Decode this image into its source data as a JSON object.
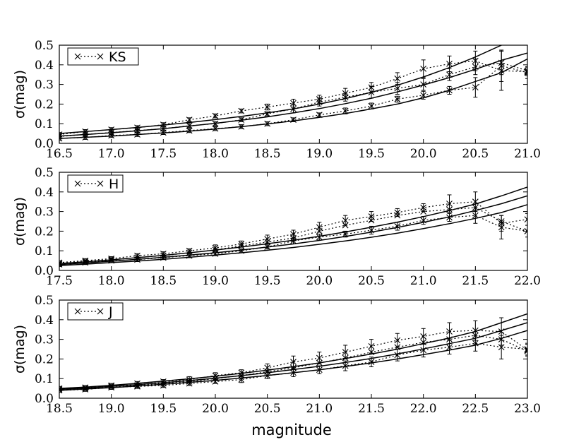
{
  "figure": {
    "xlabel": "magnitude"
  },
  "chart_data": [
    {
      "type": "line",
      "legend": "KS",
      "legend_placement": "top-left",
      "ylabel": "σ(mag)",
      "xlim": [
        16.5,
        21.0
      ],
      "ylim": [
        0.0,
        0.5
      ],
      "xticks": [
        "16.5",
        "17.0",
        "17.5",
        "18.0",
        "18.5",
        "19.0",
        "19.5",
        "20.0",
        "20.5",
        "21.0"
      ],
      "yticks": [
        "0.0",
        "0.1",
        "0.2",
        "0.3",
        "0.4",
        "0.5"
      ],
      "x": [
        16.5,
        16.75,
        17.0,
        17.25,
        17.5,
        17.75,
        18.0,
        18.25,
        18.5,
        18.75,
        19.0,
        19.25,
        19.5,
        19.75,
        20.0,
        20.25,
        20.5,
        20.75,
        21.0
      ],
      "series": [
        {
          "values": [
            0.045,
            0.06,
            0.07,
            0.08,
            0.095,
            0.12,
            0.14,
            0.165,
            0.185,
            0.205,
            0.225,
            0.255,
            0.285,
            0.33,
            0.38,
            0.405,
            0.42,
            0.37,
            0.365
          ],
          "err": [
            0.01,
            0.01,
            0.01,
            0.01,
            0.01,
            0.01,
            0.01,
            0.01,
            0.015,
            0.02,
            0.02,
            0.025,
            0.025,
            0.03,
            0.045,
            0.04,
            0.05,
            0.1,
            0.02
          ]
        },
        {
          "values": [
            0.035,
            0.045,
            0.055,
            0.065,
            0.075,
            0.09,
            0.1,
            0.12,
            0.15,
            0.175,
            0.21,
            0.235,
            0.26,
            0.28,
            0.3,
            0.35,
            0.39,
            0.41,
            0.37
          ],
          "err": [
            0.01,
            0.01,
            0.01,
            0.01,
            0.01,
            0.01,
            0.01,
            0.01,
            0.01,
            0.02,
            0.02,
            0.02,
            0.03,
            0.03,
            0.03,
            0.03,
            0.04,
            0.06,
            0.02
          ]
        },
        {
          "values": [
            0.025,
            0.03,
            0.04,
            0.045,
            0.055,
            0.065,
            0.075,
            0.085,
            0.1,
            0.12,
            0.145,
            0.165,
            0.19,
            0.225,
            0.245,
            0.27,
            0.285,
            0.395,
            0.36
          ],
          "err": [
            0.01,
            0.01,
            0.01,
            0.01,
            0.01,
            0.01,
            0.01,
            0.01,
            0.01,
            0.01,
            0.01,
            0.015,
            0.015,
            0.015,
            0.02,
            0.02,
            0.05,
            0.08,
            0.03
          ]
        }
      ],
      "fits": [
        {
          "values": [
            0.05,
            0.06,
            0.07,
            0.081,
            0.093,
            0.106,
            0.121,
            0.137,
            0.155,
            0.175,
            0.2,
            0.228,
            0.26,
            0.296,
            0.338,
            0.386,
            0.44,
            0.5,
            0.56
          ]
        },
        {
          "values": [
            0.037,
            0.045,
            0.054,
            0.064,
            0.075,
            0.088,
            0.102,
            0.118,
            0.135,
            0.155,
            0.177,
            0.202,
            0.23,
            0.262,
            0.297,
            0.335,
            0.377,
            0.423,
            0.46
          ]
        },
        {
          "values": [
            0.025,
            0.031,
            0.037,
            0.045,
            0.053,
            0.062,
            0.073,
            0.085,
            0.099,
            0.114,
            0.132,
            0.152,
            0.175,
            0.2,
            0.232,
            0.27,
            0.315,
            0.36,
            0.43
          ]
        }
      ]
    },
    {
      "type": "line",
      "legend": "H",
      "legend_placement": "top-left",
      "ylabel": "σ(mag)",
      "xlim": [
        17.5,
        22.0
      ],
      "ylim": [
        0.0,
        0.5
      ],
      "xticks": [
        "17.5",
        "18.0",
        "18.5",
        "19.0",
        "19.5",
        "20.0",
        "20.5",
        "21.0",
        "21.5",
        "22.0"
      ],
      "yticks": [
        "0.0",
        "0.1",
        "0.2",
        "0.3",
        "0.4",
        "0.5"
      ],
      "x": [
        17.5,
        17.75,
        18.0,
        18.25,
        18.5,
        18.75,
        19.0,
        19.25,
        19.5,
        19.75,
        20.0,
        20.25,
        20.5,
        20.75,
        21.0,
        21.25,
        21.5,
        21.75,
        22.0
      ],
      "series": [
        {
          "values": [
            0.04,
            0.05,
            0.06,
            0.075,
            0.085,
            0.1,
            0.115,
            0.135,
            0.16,
            0.185,
            0.22,
            0.255,
            0.275,
            0.295,
            0.32,
            0.34,
            0.35,
            0.24,
            0.26
          ],
          "err": [
            0.01,
            0.01,
            0.01,
            0.01,
            0.01,
            0.01,
            0.015,
            0.015,
            0.02,
            0.02,
            0.025,
            0.025,
            0.025,
            0.02,
            0.02,
            0.045,
            0.05,
            0.04,
            0.03
          ]
        },
        {
          "values": [
            0.035,
            0.045,
            0.055,
            0.065,
            0.075,
            0.09,
            0.105,
            0.125,
            0.145,
            0.165,
            0.2,
            0.23,
            0.255,
            0.28,
            0.3,
            0.31,
            0.32,
            0.25,
            0.2
          ]
        },
        {
          "values": [
            0.03,
            0.04,
            0.05,
            0.055,
            0.065,
            0.075,
            0.085,
            0.1,
            0.12,
            0.15,
            0.17,
            0.185,
            0.205,
            0.225,
            0.255,
            0.27,
            0.28,
            0.22,
            0.2
          ],
          "err": [
            0.01,
            0.01,
            0.01,
            0.01,
            0.01,
            0.01,
            0.01,
            0.01,
            0.01,
            0.015,
            0.015,
            0.015,
            0.02,
            0.02,
            0.02,
            0.02,
            0.04,
            0.06,
            0.03
          ]
        }
      ],
      "fits": [
        {
          "values": [
            0.035,
            0.044,
            0.054,
            0.065,
            0.077,
            0.09,
            0.104,
            0.119,
            0.136,
            0.154,
            0.174,
            0.196,
            0.22,
            0.246,
            0.274,
            0.305,
            0.338,
            0.38,
            0.425
          ]
        },
        {
          "values": [
            0.03,
            0.038,
            0.047,
            0.057,
            0.067,
            0.078,
            0.09,
            0.104,
            0.119,
            0.135,
            0.153,
            0.173,
            0.195,
            0.219,
            0.245,
            0.273,
            0.305,
            0.34,
            0.38
          ]
        },
        {
          "values": [
            0.025,
            0.032,
            0.04,
            0.048,
            0.057,
            0.067,
            0.078,
            0.09,
            0.103,
            0.117,
            0.133,
            0.15,
            0.169,
            0.19,
            0.213,
            0.238,
            0.265,
            0.295,
            0.335
          ]
        }
      ]
    },
    {
      "type": "line",
      "legend": "J",
      "legend_placement": "top-left",
      "ylabel": "σ(mag)",
      "xlim": [
        18.5,
        23.0
      ],
      "ylim": [
        0.0,
        0.5
      ],
      "xticks": [
        "18.5",
        "19.0",
        "19.5",
        "20.0",
        "20.5",
        "21.0",
        "21.5",
        "22.0",
        "22.5",
        "23.0"
      ],
      "yticks": [
        "0.0",
        "0.1",
        "0.2",
        "0.3",
        "0.4",
        "0.5"
      ],
      "x": [
        18.5,
        18.75,
        19.0,
        19.25,
        19.5,
        19.75,
        20.0,
        20.25,
        20.5,
        20.75,
        21.0,
        21.25,
        21.5,
        21.75,
        22.0,
        22.25,
        22.5,
        22.75,
        23.0
      ],
      "series": [
        {
          "values": [
            0.05,
            0.055,
            0.065,
            0.075,
            0.085,
            0.095,
            0.115,
            0.13,
            0.155,
            0.185,
            0.205,
            0.235,
            0.265,
            0.295,
            0.315,
            0.34,
            0.345,
            0.34,
            0.245
          ],
          "err": [
            0.01,
            0.01,
            0.01,
            0.01,
            0.01,
            0.015,
            0.015,
            0.015,
            0.02,
            0.03,
            0.03,
            0.035,
            0.035,
            0.035,
            0.04,
            0.045,
            0.05,
            0.07,
            0.03
          ]
        },
        {
          "values": [
            0.045,
            0.05,
            0.06,
            0.065,
            0.075,
            0.085,
            0.1,
            0.115,
            0.135,
            0.155,
            0.18,
            0.205,
            0.235,
            0.26,
            0.285,
            0.3,
            0.32,
            0.3,
            0.24
          ]
        },
        {
          "values": [
            0.04,
            0.045,
            0.055,
            0.06,
            0.065,
            0.075,
            0.085,
            0.095,
            0.115,
            0.13,
            0.145,
            0.165,
            0.185,
            0.22,
            0.245,
            0.26,
            0.28,
            0.26,
            0.25
          ],
          "err": [
            0.01,
            0.01,
            0.01,
            0.01,
            0.01,
            0.01,
            0.01,
            0.015,
            0.015,
            0.02,
            0.02,
            0.025,
            0.025,
            0.03,
            0.035,
            0.035,
            0.04,
            0.06,
            0.03
          ]
        }
      ],
      "fits": [
        {
          "values": [
            0.05,
            0.057,
            0.066,
            0.076,
            0.087,
            0.099,
            0.112,
            0.127,
            0.143,
            0.161,
            0.18,
            0.202,
            0.225,
            0.25,
            0.278,
            0.307,
            0.34,
            0.385,
            0.43
          ]
        },
        {
          "values": [
            0.045,
            0.052,
            0.06,
            0.069,
            0.079,
            0.09,
            0.102,
            0.115,
            0.13,
            0.146,
            0.163,
            0.182,
            0.203,
            0.226,
            0.251,
            0.278,
            0.305,
            0.345,
            0.385
          ]
        },
        {
          "values": [
            0.04,
            0.047,
            0.054,
            0.062,
            0.071,
            0.081,
            0.091,
            0.103,
            0.116,
            0.13,
            0.145,
            0.162,
            0.18,
            0.2,
            0.222,
            0.245,
            0.27,
            0.305,
            0.345
          ]
        }
      ]
    }
  ]
}
